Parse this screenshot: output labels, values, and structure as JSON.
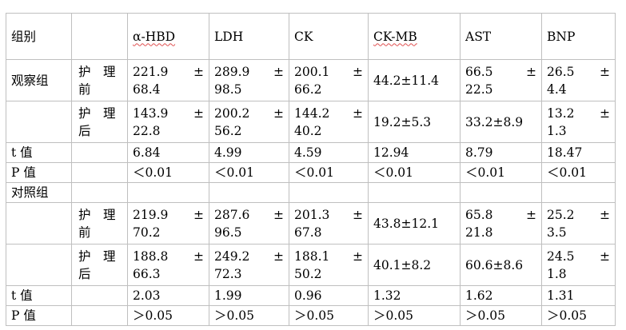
{
  "header": {
    "group": "组别",
    "cols": [
      "α-HBD",
      "LDH",
      "CK",
      "CK-MB",
      "AST",
      "BNP"
    ]
  },
  "obs_label": "观察组",
  "ctl_label": "对照组",
  "nurse_before": [
    "护　理",
    "前"
  ],
  "nurse_after": [
    "护　理",
    "后"
  ],
  "t_label": "t 值",
  "p_label": "P 值",
  "pm": "±",
  "obs_before": [
    {
      "a": "221.9",
      "b": "68.4"
    },
    {
      "a": "289.9",
      "b": "98.5"
    },
    {
      "a": "200.1",
      "b": "66.2"
    },
    {
      "one": "44.2±11.4"
    },
    {
      "a": "66.5",
      "b": "22.5"
    },
    {
      "a": "26.5",
      "b": "4.4"
    }
  ],
  "obs_after": [
    {
      "a": "143.9",
      "b": "22.8"
    },
    {
      "a": "200.2",
      "b": "56.2"
    },
    {
      "a": "144.2",
      "b": "40.2"
    },
    {
      "one": "19.2±5.3"
    },
    {
      "one": "33.2±8.9"
    },
    {
      "a": "13.2",
      "b": "1.3"
    }
  ],
  "obs_t": [
    "6.84",
    "4.99",
    "4.59",
    "12.94",
    "8.79",
    "18.47"
  ],
  "obs_p": [
    "＜0.01",
    "＜0.01",
    "＜0.01",
    "＜0.01",
    "＜0.01",
    "＜0.01"
  ],
  "ctl_before": [
    {
      "a": "219.9",
      "b": "70.2"
    },
    {
      "a": "287.6",
      "b": "96.5"
    },
    {
      "a": "201.3",
      "b": "67.8"
    },
    {
      "one": "43.8±12.1"
    },
    {
      "a": "65.8",
      "b": "21.8"
    },
    {
      "a": "25.2",
      "b": "3.5"
    }
  ],
  "ctl_after": [
    {
      "a": "188.8",
      "b": "66.3"
    },
    {
      "a": "249.2",
      "b": "72.3"
    },
    {
      "a": "188.1",
      "b": "50.2"
    },
    {
      "one": "40.1±8.2"
    },
    {
      "one": "60.6±8.6"
    },
    {
      "a": "24.5",
      "b": "1.8"
    }
  ],
  "ctl_t": [
    "2.03",
    "1.99",
    "0.96",
    "1.32",
    "1.62",
    "1.31"
  ],
  "ctl_p": [
    "＞0.05",
    "＞0.05",
    "＞0.05",
    "＞0.05",
    "＞0.05",
    "＞0.05"
  ]
}
